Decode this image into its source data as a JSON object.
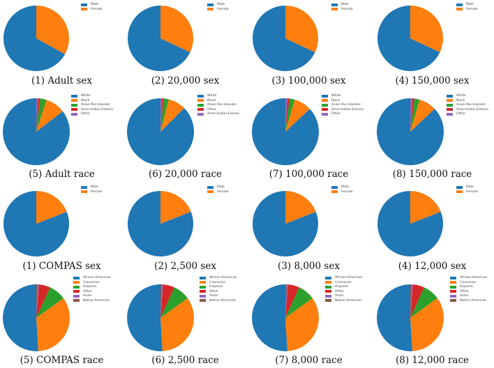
{
  "colors": {
    "blue": "#1f77b4",
    "orange": "#ff7f0e",
    "green": "#2ca02c",
    "red": "#d62728",
    "purple": "#9467bd",
    "brown": "#8c564b"
  },
  "chart_data": [
    {
      "type": "pie",
      "title": "(1) Adult sex",
      "labels": [
        "Male",
        "Female"
      ],
      "values": [
        67,
        33
      ]
    },
    {
      "type": "pie",
      "title": "(2) 20,000 sex",
      "labels": [
        "Male",
        "Female"
      ],
      "values": [
        68,
        32
      ]
    },
    {
      "type": "pie",
      "title": "(3) 100,000 sex",
      "labels": [
        "Male",
        "Female"
      ],
      "values": [
        68,
        32
      ]
    },
    {
      "type": "pie",
      "title": "(4) 150,000 sex",
      "labels": [
        "Male",
        "Female"
      ],
      "values": [
        68,
        32
      ]
    },
    {
      "type": "pie",
      "title": "(5) Adult race",
      "labels": [
        "White",
        "Black",
        "Asian-Pac-Islander",
        "Amer-Indian-Eskimo",
        "Other"
      ],
      "values": [
        85.5,
        9.6,
        3.1,
        1.0,
        0.8
      ]
    },
    {
      "type": "pie",
      "title": "(6) 20,000 race",
      "labels": [
        "White",
        "Black",
        "Asian-Pac-Islander",
        "Other",
        "Amer-Indian-Eskimo"
      ],
      "values": [
        87.5,
        8.5,
        2.5,
        0.8,
        0.7
      ]
    },
    {
      "type": "pie",
      "title": "(7) 100,000 race",
      "labels": [
        "White",
        "Black",
        "Asian-Pac-Islander",
        "Amer-Indian-Eskimo",
        "Other"
      ],
      "values": [
        87,
        8.5,
        2.5,
        1.0,
        1.0
      ]
    },
    {
      "type": "pie",
      "title": "(8) 150,000 race",
      "labels": [
        "White",
        "Black",
        "Asian-Pac-Islander",
        "Amer-Indian-Eskimo",
        "Other"
      ],
      "values": [
        87,
        8.5,
        2.5,
        1.0,
        1.0
      ]
    },
    {
      "type": "pie",
      "title": "(1) COMPAS sex",
      "labels": [
        "Male",
        "Female"
      ],
      "values": [
        81,
        19
      ]
    },
    {
      "type": "pie",
      "title": "(2) 2,500 sex",
      "labels": [
        "Male",
        "Female"
      ],
      "values": [
        81,
        19
      ]
    },
    {
      "type": "pie",
      "title": "(3) 8,000 sex",
      "labels": [
        "Male",
        "Female"
      ],
      "values": [
        81,
        19
      ]
    },
    {
      "type": "pie",
      "title": "(4) 12,000 sex",
      "labels": [
        "Male",
        "Female"
      ],
      "values": [
        81,
        19
      ]
    },
    {
      "type": "pie",
      "title": "(5) COMPAS race",
      "labels": [
        "African-American",
        "Caucasian",
        "Hispanic",
        "Other",
        "Asian",
        "Native American"
      ],
      "values": [
        51,
        34,
        8.2,
        5.6,
        0.6,
        0.6
      ]
    },
    {
      "type": "pie",
      "title": "(6) 2,500 race",
      "labels": [
        "African-American",
        "Caucasian",
        "Hispanic",
        "Other",
        "Asian",
        "Native American"
      ],
      "values": [
        51,
        34,
        8.2,
        5.6,
        0.6,
        0.6
      ]
    },
    {
      "type": "pie",
      "title": "(7) 8,000 race",
      "labels": [
        "African-American",
        "Caucasian",
        "Hispanic",
        "Other",
        "Asian",
        "Native American"
      ],
      "values": [
        51,
        34,
        8.2,
        5.6,
        0.6,
        0.6
      ]
    },
    {
      "type": "pie",
      "title": "(8) 12,000 race",
      "labels": [
        "African-American",
        "Caucasian",
        "Hispanic",
        "Other",
        "Asian",
        "Native American"
      ],
      "values": [
        51,
        34,
        8.2,
        5.6,
        0.6,
        0.6
      ]
    }
  ]
}
